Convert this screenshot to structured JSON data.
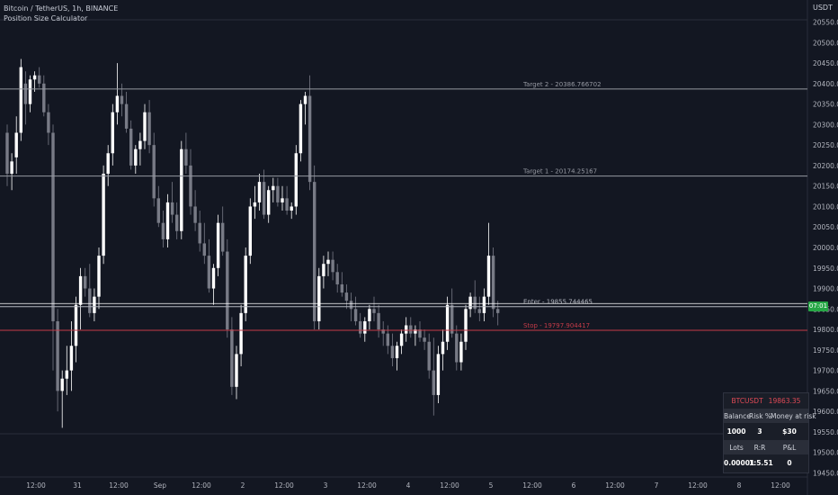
{
  "header": {
    "symbol_line": "Bitcoin / TetherUS, 1h, BINANCE",
    "indicator": "Position Size Calculator"
  },
  "currency_label": "USDT",
  "price_badge": "07:01",
  "levels": [
    {
      "label": "Target 2 - 20386.766702",
      "price": 20386.766702,
      "color": "#9598a1"
    },
    {
      "label": "Target 1 - 20174.25167",
      "price": 20174.25167,
      "color": "#9598a1"
    },
    {
      "label": "Enter - 19855.744465",
      "price": 19855.744465,
      "color": "#b2b5be"
    },
    {
      "label": "Stop - 19797.904417",
      "price": 19797.904417,
      "color": "#c43b48"
    }
  ],
  "price_axis_ticks": [
    20550.0,
    20500.0,
    20450.0,
    20400.0,
    20350.0,
    20300.0,
    20250.0,
    20200.0,
    20150.0,
    20100.0,
    20050.0,
    20000.0,
    19950.0,
    19900.0,
    19850.0,
    19800.0,
    19750.0,
    19700.0,
    19650.0,
    19600.0,
    19550.0,
    19500.0,
    19450.0
  ],
  "time_axis_labels": [
    "12:00",
    "31",
    "12:00",
    "Sep",
    "12:00",
    "2",
    "12:00",
    "3",
    "12:00",
    "4",
    "12:00",
    "5",
    "12:00",
    "6",
    "12:00",
    "7",
    "12:00",
    "8",
    "12:00"
  ],
  "position_table": {
    "symbol": "BTCUSDT",
    "price": "19863.35",
    "headers1": [
      "Balance",
      "Risk %",
      "Money at risk"
    ],
    "values1": [
      "1000",
      "3",
      "$30"
    ],
    "headers2": [
      "Lots",
      "R:R",
      "P&L"
    ],
    "values2": [
      "0.00001",
      "1:5.51",
      "0"
    ]
  },
  "chart_data": {
    "type": "candlestick",
    "ylim": [
      19440,
      20560
    ],
    "colors": {
      "up": "#ffffff",
      "down": "#787b86",
      "background": "#131722"
    },
    "candles": [
      [
        20280,
        20300,
        20150,
        20180
      ],
      [
        20180,
        20230,
        20140,
        20210
      ],
      [
        20220,
        20320,
        20180,
        20280
      ],
      [
        20280,
        20460,
        20260,
        20440
      ],
      [
        20400,
        20430,
        20300,
        20350
      ],
      [
        20350,
        20420,
        20330,
        20410
      ],
      [
        20410,
        20430,
        20380,
        20420
      ],
      [
        20420,
        20440,
        20390,
        20400
      ],
      [
        20400,
        20420,
        20320,
        20330
      ],
      [
        20330,
        20350,
        20250,
        20280
      ],
      [
        20280,
        20300,
        19700,
        19820
      ],
      [
        19820,
        19850,
        19600,
        19650
      ],
      [
        19650,
        19700,
        19560,
        19680
      ],
      [
        19680,
        19760,
        19640,
        19700
      ],
      [
        19700,
        19820,
        19650,
        19760
      ],
      [
        19760,
        19880,
        19720,
        19860
      ],
      [
        19860,
        19950,
        19800,
        19930
      ],
      [
        19930,
        19950,
        19880,
        19900
      ],
      [
        19900,
        19960,
        19830,
        19840
      ],
      [
        19840,
        19900,
        19820,
        19880
      ],
      [
        19880,
        20000,
        19850,
        19980
      ],
      [
        19980,
        20200,
        19960,
        20180
      ],
      [
        20180,
        20250,
        20150,
        20230
      ],
      [
        20230,
        20350,
        20200,
        20330
      ],
      [
        20330,
        20450,
        20300,
        20370
      ],
      [
        20370,
        20400,
        20320,
        20350
      ],
      [
        20350,
        20380,
        20280,
        20290
      ],
      [
        20290,
        20310,
        20190,
        20200
      ],
      [
        20200,
        20250,
        20180,
        20240
      ],
      [
        20240,
        20280,
        20200,
        20260
      ],
      [
        20260,
        20350,
        20240,
        20330
      ],
      [
        20330,
        20360,
        20230,
        20250
      ],
      [
        20250,
        20280,
        20100,
        20120
      ],
      [
        20120,
        20150,
        20050,
        20060
      ],
      [
        20060,
        20090,
        20000,
        20020
      ],
      [
        20020,
        20130,
        20000,
        20110
      ],
      [
        20110,
        20160,
        20060,
        20080
      ],
      [
        20080,
        20110,
        20020,
        20040
      ],
      [
        20040,
        20260,
        20020,
        20240
      ],
      [
        20240,
        20280,
        20180,
        20200
      ],
      [
        20200,
        20240,
        20080,
        20100
      ],
      [
        20100,
        20140,
        20040,
        20060
      ],
      [
        20060,
        20090,
        19990,
        20010
      ],
      [
        20010,
        20060,
        19960,
        19980
      ],
      [
        19980,
        20020,
        19890,
        19900
      ],
      [
        19900,
        19960,
        19860,
        19950
      ],
      [
        19950,
        20080,
        19930,
        20060
      ],
      [
        20060,
        20100,
        19980,
        19990
      ],
      [
        19990,
        20020,
        19780,
        19800
      ],
      [
        19800,
        19830,
        19640,
        19660
      ],
      [
        19660,
        19760,
        19630,
        19740
      ],
      [
        19740,
        19860,
        19710,
        19840
      ],
      [
        19840,
        20000,
        19820,
        19980
      ],
      [
        19980,
        20120,
        19960,
        20100
      ],
      [
        20100,
        20150,
        20070,
        20110
      ],
      [
        20110,
        20180,
        20090,
        20160
      ],
      [
        20160,
        20190,
        20070,
        20080
      ],
      [
        20080,
        20150,
        20060,
        20140
      ],
      [
        20140,
        20170,
        20110,
        20150
      ],
      [
        20150,
        20170,
        20100,
        20110
      ],
      [
        20110,
        20150,
        20090,
        20120
      ],
      [
        20120,
        20150,
        20080,
        20090
      ],
      [
        20090,
        20110,
        20070,
        20100
      ],
      [
        20100,
        20250,
        20080,
        20230
      ],
      [
        20230,
        20360,
        20210,
        20350
      ],
      [
        20350,
        20380,
        20300,
        20370
      ],
      [
        20370,
        20420,
        20140,
        20160
      ],
      [
        20160,
        20200,
        19800,
        19820
      ],
      [
        19820,
        19950,
        19800,
        19930
      ],
      [
        19930,
        19980,
        19900,
        19960
      ],
      [
        19960,
        19990,
        19930,
        19970
      ],
      [
        19970,
        19990,
        19920,
        19940
      ],
      [
        19940,
        19960,
        19890,
        19910
      ],
      [
        19910,
        19940,
        19880,
        19890
      ],
      [
        19890,
        19910,
        19850,
        19870
      ],
      [
        19870,
        19890,
        19820,
        19850
      ],
      [
        19850,
        19880,
        19810,
        19820
      ],
      [
        19820,
        19840,
        19780,
        19790
      ],
      [
        19790,
        19830,
        19770,
        19820
      ],
      [
        19820,
        19860,
        19800,
        19850
      ],
      [
        19850,
        19880,
        19820,
        19840
      ],
      [
        19840,
        19860,
        19780,
        19800
      ],
      [
        19800,
        19820,
        19760,
        19790
      ],
      [
        19790,
        19810,
        19740,
        19760
      ],
      [
        19760,
        19790,
        19710,
        19730
      ],
      [
        19730,
        19770,
        19700,
        19760
      ],
      [
        19760,
        19800,
        19740,
        19790
      ],
      [
        19790,
        19830,
        19770,
        19810
      ],
      [
        19810,
        19830,
        19780,
        19790
      ],
      [
        19790,
        19810,
        19760,
        19800
      ],
      [
        19800,
        19820,
        19770,
        19780
      ],
      [
        19780,
        19800,
        19750,
        19770
      ],
      [
        19770,
        19790,
        19680,
        19700
      ],
      [
        19700,
        19780,
        19590,
        19640
      ],
      [
        19640,
        19760,
        19620,
        19740
      ],
      [
        19740,
        19800,
        19700,
        19770
      ],
      [
        19770,
        19880,
        19750,
        19860
      ],
      [
        19860,
        19900,
        19780,
        19790
      ],
      [
        19790,
        19810,
        19700,
        19720
      ],
      [
        19720,
        19790,
        19700,
        19770
      ],
      [
        19770,
        19860,
        19750,
        19850
      ],
      [
        19850,
        19890,
        19830,
        19880
      ],
      [
        19880,
        19920,
        19840,
        19850
      ],
      [
        19850,
        19880,
        19820,
        19840
      ],
      [
        19840,
        19900,
        19820,
        19880
      ],
      [
        19880,
        20060,
        19860,
        19980
      ],
      [
        19980,
        20000,
        19830,
        19850
      ],
      [
        19850,
        19870,
        19810,
        19840
      ]
    ]
  }
}
